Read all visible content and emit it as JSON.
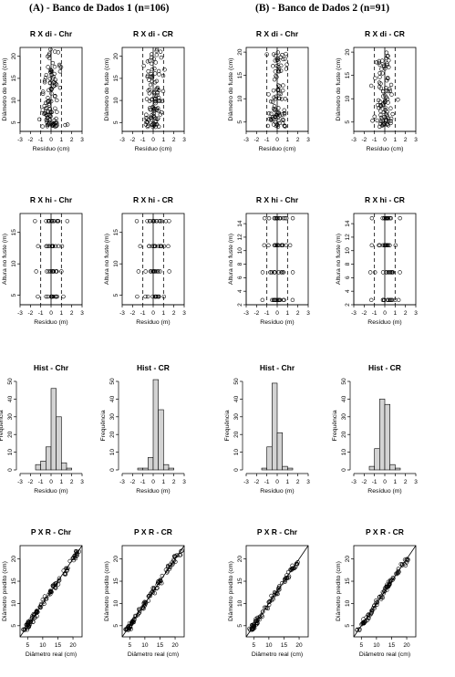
{
  "headers": {
    "a": "(A) - Banco de Dados 1 (n=106)",
    "b": "(B) - Banco de Dados 2 (n=91)"
  },
  "chart_data": [
    {
      "type": "scatter",
      "title": "R X di - Chr",
      "xlabel": "Resíduo (cm)",
      "ylabel": "Diâmetro do fuste (cm)",
      "xlim": [
        -3,
        3
      ],
      "ylim": [
        3,
        22
      ],
      "xticks": [
        -3,
        -2,
        -1,
        0,
        1,
        2,
        3
      ],
      "yticks": [
        5,
        10,
        15,
        20
      ],
      "vlines": [
        -1,
        0,
        1
      ],
      "seed": 11,
      "n": 106,
      "yrange": [
        4,
        22
      ],
      "xsd": 0.45,
      "points": "generated"
    },
    {
      "type": "scatter",
      "title": "R X di - CR",
      "xlabel": "Resíduo (cm)",
      "ylabel": "Diâmetro do fuste (cm)",
      "xlim": [
        -3,
        3
      ],
      "ylim": [
        3,
        22
      ],
      "xticks": [
        -3,
        -2,
        -1,
        0,
        1,
        2,
        3
      ],
      "yticks": [
        5,
        10,
        15,
        20
      ],
      "vlines": [
        -1,
        0,
        1
      ],
      "seed": 12,
      "n": 106,
      "yrange": [
        4,
        22
      ],
      "xsd": 0.5
    },
    {
      "type": "scatter",
      "title": "R X di - Chr",
      "xlabel": "Resíduo (cm)",
      "ylabel": "Diâmetro do fuste (cm)",
      "xlim": [
        -3,
        3
      ],
      "ylim": [
        3,
        21
      ],
      "xticks": [
        -3,
        -2,
        -1,
        0,
        1,
        2,
        3
      ],
      "yticks": [
        5,
        10,
        15,
        20
      ],
      "vlines": [
        -1,
        0,
        1
      ],
      "seed": 13,
      "n": 91,
      "yrange": [
        4,
        20
      ],
      "xsd": 0.42
    },
    {
      "type": "scatter",
      "title": "R X di - CR",
      "xlabel": "Resíduo (cm)",
      "ylabel": "Diâmetro do fuste (cm)",
      "xlim": [
        -3,
        3
      ],
      "ylim": [
        3,
        21
      ],
      "xticks": [
        -3,
        -2,
        -1,
        0,
        1,
        2,
        3
      ],
      "yticks": [
        5,
        10,
        15,
        20
      ],
      "vlines": [
        -1,
        0,
        1
      ],
      "seed": 14,
      "n": 91,
      "yrange": [
        4,
        20
      ],
      "xsd": 0.45
    },
    {
      "type": "scatter",
      "title": "R X hi - Chr",
      "xlabel": "Resíduo (m)",
      "ylabel": "Altura no fuste (m)",
      "xlim": [
        -3,
        3
      ],
      "ylim": [
        3.5,
        18
      ],
      "xticks": [
        -3,
        -2,
        -1,
        0,
        1,
        2,
        3
      ],
      "yticks": [
        5,
        10,
        15
      ],
      "vlines": [
        -1,
        0,
        1
      ],
      "seed": 21,
      "levels": [
        4.8,
        8.8,
        12.8,
        16.8
      ],
      "perlevel": 14,
      "xsd": 0.35
    },
    {
      "type": "scatter",
      "title": "R X hi - CR",
      "xlabel": "Resíduo (m)",
      "ylabel": "Altura no fuste (m)",
      "xlim": [
        -3,
        3
      ],
      "ylim": [
        3.5,
        18
      ],
      "xticks": [
        -3,
        -2,
        -1,
        0,
        1,
        2,
        3
      ],
      "yticks": [
        5,
        10,
        15
      ],
      "vlines": [
        -1,
        0,
        1
      ],
      "seed": 22,
      "levels": [
        4.8,
        8.8,
        12.8,
        16.8
      ],
      "perlevel": 14,
      "xsd": 0.45
    },
    {
      "type": "scatter",
      "title": "R X hi - Chr",
      "xlabel": "Resíduo (m)",
      "ylabel": "Altura no fuste (m)",
      "xlim": [
        -3,
        3
      ],
      "ylim": [
        2,
        15.5
      ],
      "xticks": [
        -3,
        -2,
        -1,
        0,
        1,
        2,
        3
      ],
      "yticks": [
        2,
        4,
        6,
        8,
        10,
        12,
        14
      ],
      "vlines": [
        -1,
        0,
        1
      ],
      "seed": 23,
      "levels": [
        2.7,
        6.8,
        10.8,
        14.8
      ],
      "perlevel": 14,
      "xsd": 0.35
    },
    {
      "type": "scatter",
      "title": "R X hi - CR",
      "xlabel": "Resíduo (m)",
      "ylabel": "Altura no fuste (m)",
      "xlim": [
        -3,
        3
      ],
      "ylim": [
        2,
        15.5
      ],
      "xticks": [
        -3,
        -2,
        -1,
        0,
        1,
        2,
        3
      ],
      "yticks": [
        2,
        4,
        6,
        8,
        10,
        12,
        14
      ],
      "vlines": [
        -1,
        0,
        1
      ],
      "seed": 24,
      "levels": [
        2.7,
        6.8,
        10.8,
        14.8
      ],
      "perlevel": 14,
      "xsd": 0.45
    },
    {
      "type": "bar",
      "title": "Hist - Chr",
      "xlabel": "Resíduo (m)",
      "ylabel": "Frequência",
      "xlim": [
        -3,
        3
      ],
      "ylim": [
        0,
        50
      ],
      "xticks": [
        -3,
        -2,
        -1,
        0,
        1,
        2,
        3
      ],
      "yticks": [
        0,
        10,
        20,
        30,
        40,
        50
      ],
      "bin_edges": [
        -1.5,
        -1,
        -0.5,
        0,
        0.5,
        1,
        1.5,
        2
      ],
      "values": [
        3,
        5,
        13,
        46,
        30,
        4,
        1
      ]
    },
    {
      "type": "bar",
      "title": "Hist - CR",
      "xlabel": "Resíduo (m)",
      "ylabel": "Frequência",
      "xlim": [
        -3,
        3
      ],
      "ylim": [
        0,
        50
      ],
      "xticks": [
        -3,
        -2,
        -1,
        0,
        1,
        2,
        3
      ],
      "yticks": [
        0,
        10,
        20,
        30,
        40,
        50
      ],
      "bin_edges": [
        -1.5,
        -1,
        -0.5,
        0,
        0.5,
        1,
        1.5,
        2
      ],
      "values": [
        1,
        1,
        7,
        51,
        34,
        3,
        1
      ]
    },
    {
      "type": "bar",
      "title": "Hist - Chr",
      "xlabel": "Resíduo (m)",
      "ylabel": "Frequência",
      "xlim": [
        -3,
        3
      ],
      "ylim": [
        0,
        50
      ],
      "xticks": [
        -3,
        -2,
        -1,
        0,
        1,
        2,
        3
      ],
      "yticks": [
        0,
        10,
        20,
        30,
        40,
        50
      ],
      "bin_edges": [
        -1.5,
        -1,
        -0.5,
        0,
        0.5,
        1,
        1.5
      ],
      "values": [
        1,
        13,
        49,
        21,
        2,
        1
      ]
    },
    {
      "type": "bar",
      "title": "Hist - CR",
      "xlabel": "Resíduo (m)",
      "ylabel": "Frequência",
      "xlim": [
        -3,
        3
      ],
      "ylim": [
        0,
        50
      ],
      "xticks": [
        -3,
        -2,
        -1,
        0,
        1,
        2,
        3
      ],
      "yticks": [
        0,
        10,
        20,
        30,
        40,
        50
      ],
      "bin_edges": [
        -1.5,
        -1,
        -0.5,
        0,
        0.5,
        1,
        1.5
      ],
      "values": [
        2,
        12,
        40,
        37,
        3,
        1
      ]
    },
    {
      "type": "scatter",
      "title": "P X R - Chr",
      "xlabel": "Diâmetro real (cm)",
      "ylabel": "Diâmetro predito (cm)",
      "xlim": [
        2.5,
        23
      ],
      "ylim": [
        2.5,
        23
      ],
      "xticks": [
        5,
        10,
        15,
        20
      ],
      "yticks": [
        5,
        10,
        15,
        20
      ],
      "identity_line": true,
      "seed": 31,
      "n": 106,
      "yrange": [
        4,
        22
      ],
      "xsd": 0.45
    },
    {
      "type": "scatter",
      "title": "P X R - CR",
      "xlabel": "Diâmetro real (cm)",
      "ylabel": "Diâmetro predito (cm)",
      "xlim": [
        2.5,
        23
      ],
      "ylim": [
        2.5,
        23
      ],
      "xticks": [
        5,
        10,
        15,
        20
      ],
      "yticks": [
        5,
        10,
        15,
        20
      ],
      "identity_line": true,
      "seed": 32,
      "n": 106,
      "yrange": [
        4,
        22
      ],
      "xsd": 0.5
    },
    {
      "type": "scatter",
      "title": "P X R - Chr",
      "xlabel": "Diâmetro real (cm)",
      "ylabel": "Diâmetro predito (cm)",
      "xlim": [
        2.5,
        23
      ],
      "ylim": [
        2.5,
        23
      ],
      "xticks": [
        5,
        10,
        15,
        20
      ],
      "yticks": [
        5,
        10,
        15,
        20
      ],
      "identity_line": true,
      "seed": 33,
      "n": 91,
      "yrange": [
        4,
        20
      ],
      "xsd": 0.42
    },
    {
      "type": "scatter",
      "title": "P X R - CR",
      "xlabel": "Diâmetro real (cm)",
      "ylabel": "Diâmetro predito (cm)",
      "xlim": [
        2.5,
        23
      ],
      "ylim": [
        2.5,
        23
      ],
      "xticks": [
        5,
        10,
        15,
        20
      ],
      "yticks": [
        5,
        10,
        15,
        20
      ],
      "identity_line": true,
      "seed": 34,
      "n": 91,
      "yrange": [
        4,
        20
      ],
      "xsd": 0.45
    }
  ]
}
